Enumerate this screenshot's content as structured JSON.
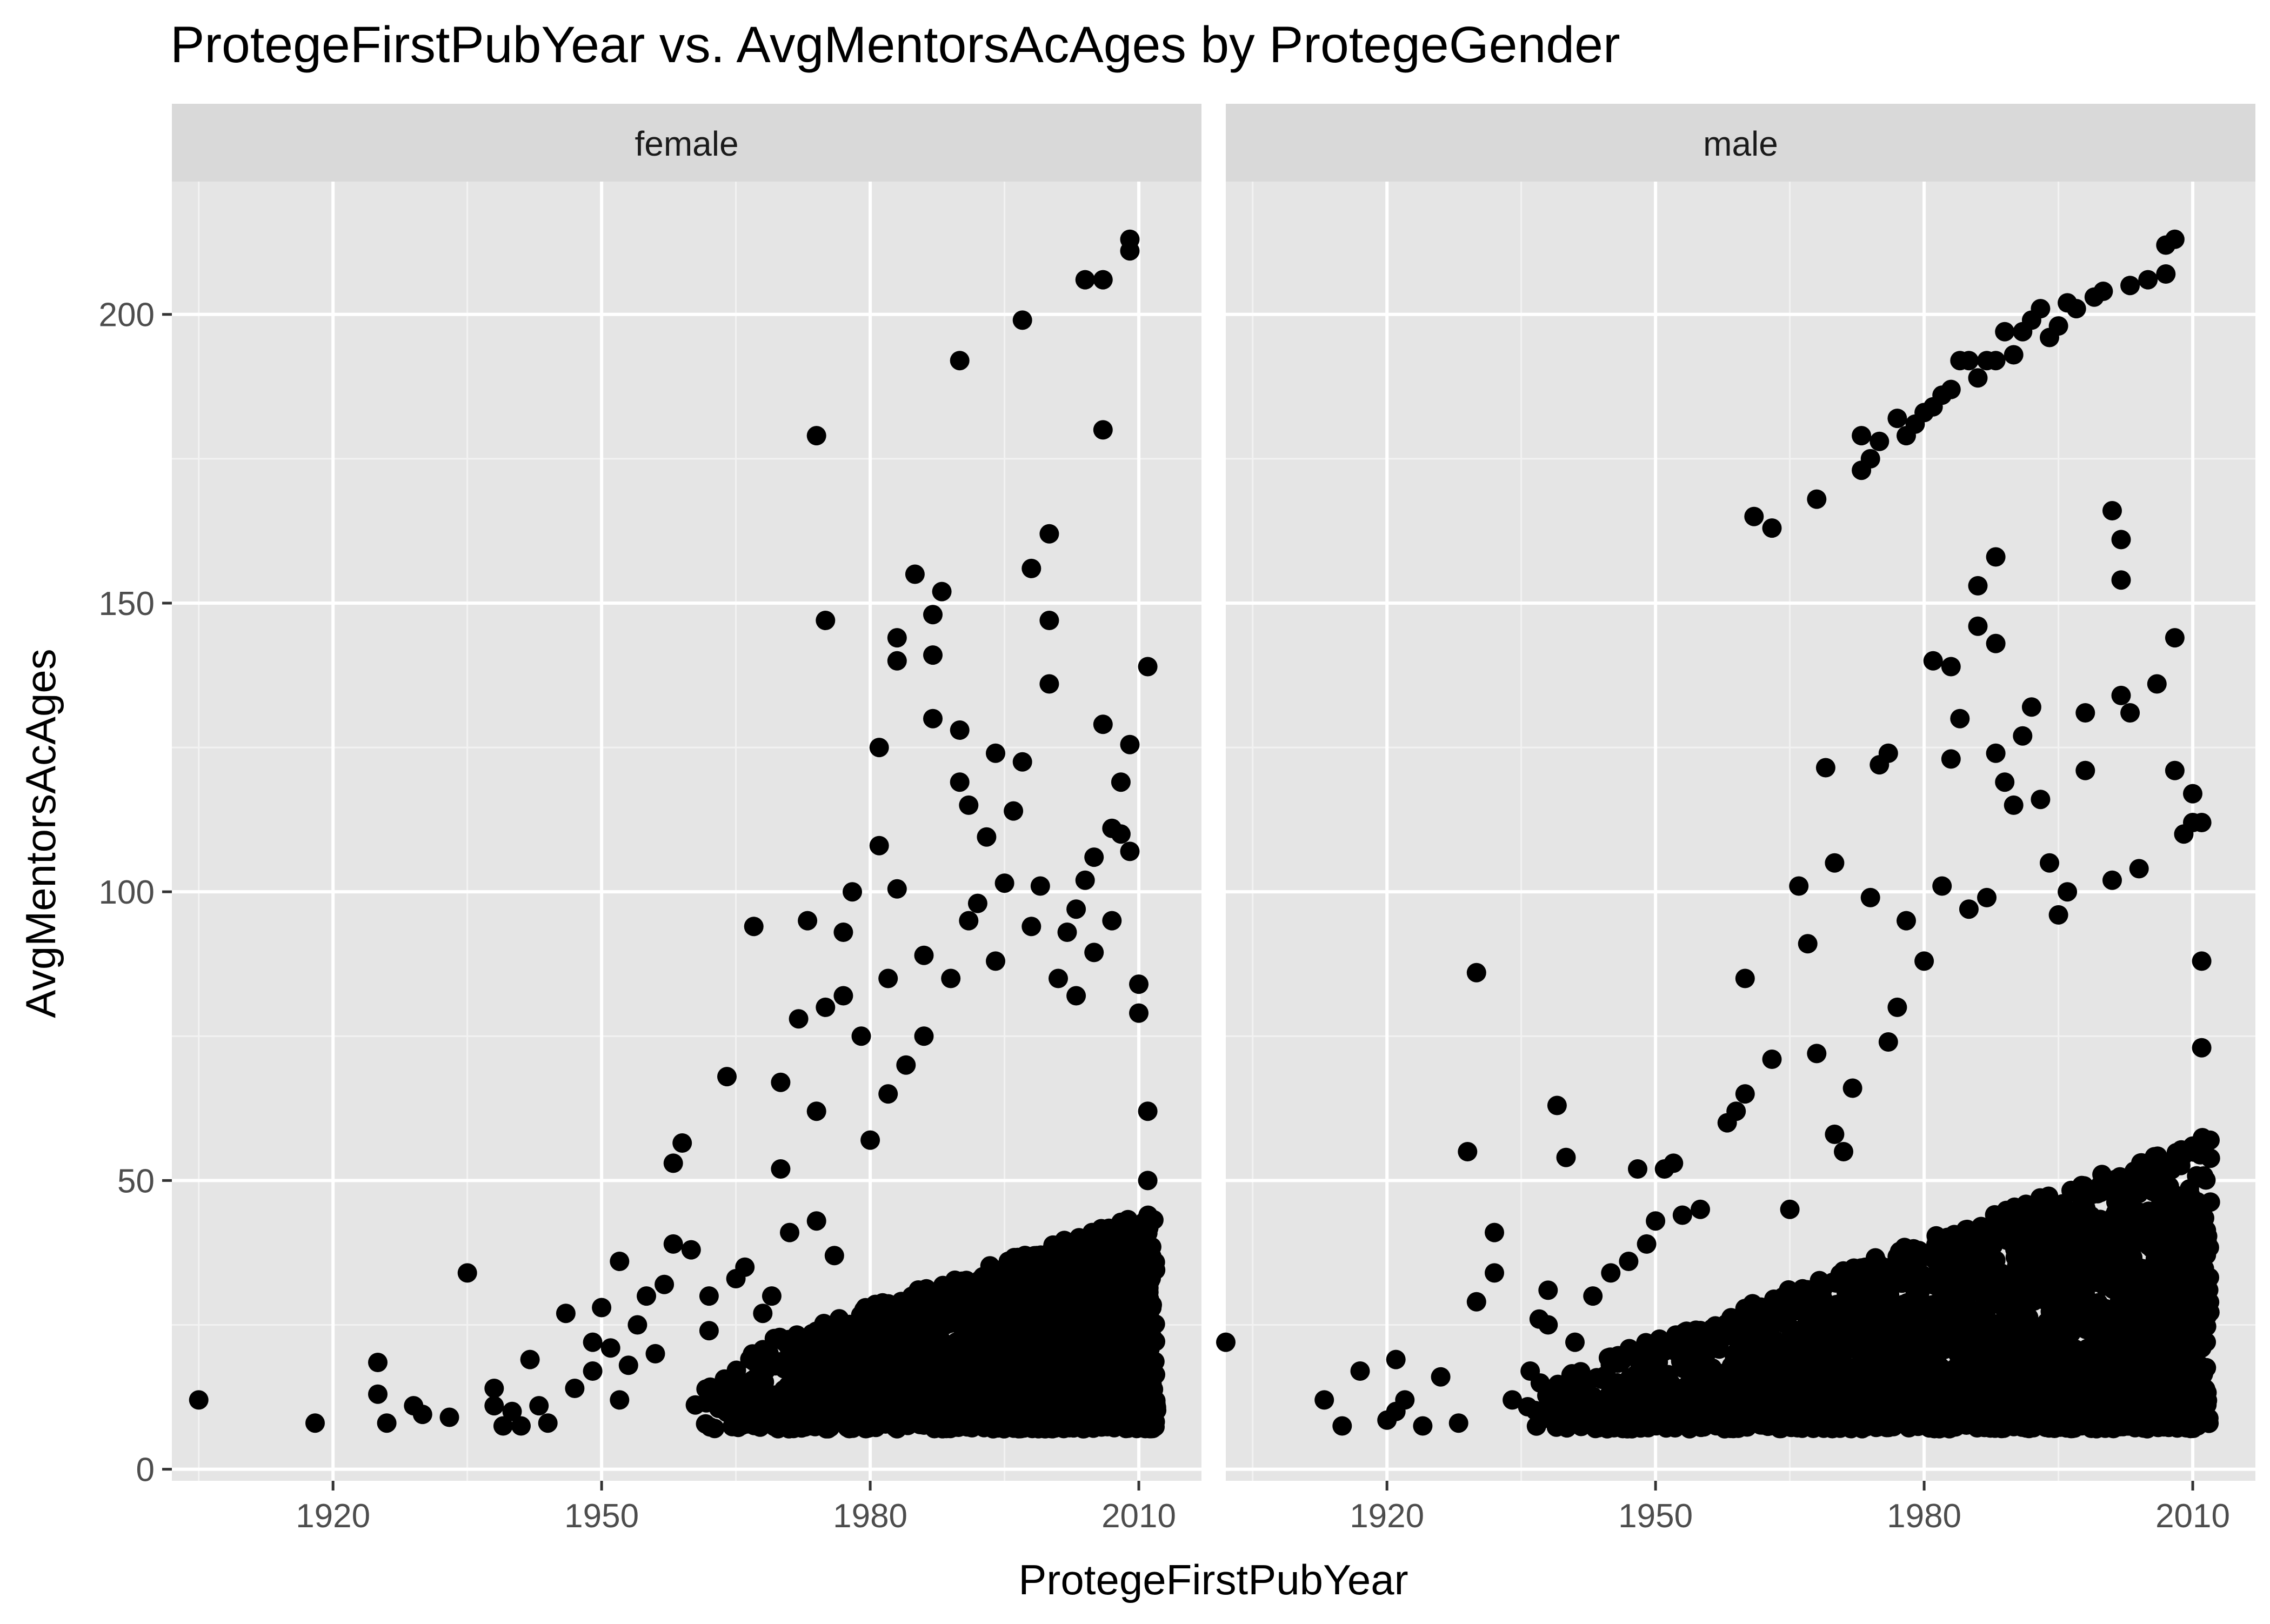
{
  "chart_data": {
    "type": "scatter",
    "title": "ProtegeFirstPubYear vs. AvgMentorsAcAges by ProtegeGender",
    "xlabel": "ProtegeFirstPubYear",
    "ylabel": "AvgMentorsAcAges",
    "xlim": [
      1902,
      2017
    ],
    "ylim": [
      -2,
      223
    ],
    "x_ticks": [
      1920,
      1950,
      1980,
      2010
    ],
    "y_ticks": [
      0,
      50,
      100,
      150,
      200
    ],
    "grid": true,
    "legend": "none",
    "point_color": "#000000",
    "panel_background": "#e5e5e5",
    "strip_background": "#d9d9d9",
    "facets": [
      {
        "label": "female",
        "dense_region": {
          "x_range": [
            1960,
            2012
          ],
          "y_floor": 7,
          "y_ceiling_at_start": 18,
          "y_ceiling_at_end": 45
        },
        "points": [
          [
            1905,
            12
          ],
          [
            1918,
            8
          ],
          [
            1925,
            18.5
          ],
          [
            1925,
            13
          ],
          [
            1926,
            8
          ],
          [
            1929,
            11
          ],
          [
            1930,
            9.5
          ],
          [
            1933,
            9
          ],
          [
            1935,
            34
          ],
          [
            1938,
            14
          ],
          [
            1938,
            11
          ],
          [
            1939,
            7.5
          ],
          [
            1940,
            10
          ],
          [
            1941,
            7.5
          ],
          [
            1942,
            19
          ],
          [
            1943,
            11
          ],
          [
            1944,
            8
          ],
          [
            1946,
            27
          ],
          [
            1947,
            14
          ],
          [
            1949,
            22
          ],
          [
            1949,
            17
          ],
          [
            1950,
            28
          ],
          [
            1951,
            21
          ],
          [
            1952,
            36
          ],
          [
            1952,
            12
          ],
          [
            1954,
            25
          ],
          [
            1955,
            30
          ],
          [
            1957,
            32
          ],
          [
            1958,
            39
          ],
          [
            1958,
            53
          ],
          [
            1959,
            56.5
          ],
          [
            1960,
            38
          ],
          [
            1962,
            30
          ],
          [
            1964,
            68
          ],
          [
            1965,
            33
          ],
          [
            1967,
            94
          ],
          [
            1970,
            52
          ],
          [
            1970,
            67
          ],
          [
            1971,
            41
          ],
          [
            1972,
            78
          ],
          [
            1973,
            95
          ],
          [
            1974,
            43
          ],
          [
            1974,
            62
          ],
          [
            1974,
            179
          ],
          [
            1975,
            147
          ],
          [
            1975,
            80
          ],
          [
            1976,
            37
          ],
          [
            1977,
            82
          ],
          [
            1977,
            93
          ],
          [
            1978,
            100
          ],
          [
            1979,
            75
          ],
          [
            1980,
            57
          ],
          [
            1981,
            108
          ],
          [
            1981,
            125
          ],
          [
            1982,
            85
          ],
          [
            1982,
            65
          ],
          [
            1983,
            140
          ],
          [
            1983,
            144
          ],
          [
            1983,
            100.5
          ],
          [
            1984,
            70
          ],
          [
            1985,
            155
          ],
          [
            1986,
            75
          ],
          [
            1986,
            89
          ],
          [
            1987,
            148
          ],
          [
            1987,
            141
          ],
          [
            1987,
            130
          ],
          [
            1988,
            152
          ],
          [
            1989,
            85
          ],
          [
            1990,
            192
          ],
          [
            1990,
            128
          ],
          [
            1990,
            119
          ],
          [
            1991,
            115
          ],
          [
            1991,
            95
          ],
          [
            1992,
            98
          ],
          [
            1993,
            109.5
          ],
          [
            1994,
            124
          ],
          [
            1994,
            88
          ],
          [
            1995,
            101.5
          ],
          [
            1996,
            114
          ],
          [
            1997,
            199
          ],
          [
            1997,
            122.5
          ],
          [
            1998,
            156
          ],
          [
            1998,
            94
          ],
          [
            1999,
            101
          ],
          [
            2000,
            147
          ],
          [
            2000,
            162
          ],
          [
            2000,
            136
          ],
          [
            2001,
            85
          ],
          [
            2002,
            93
          ],
          [
            2003,
            97
          ],
          [
            2003,
            82
          ],
          [
            2004,
            206
          ],
          [
            2004,
            102
          ],
          [
            2005,
            106
          ],
          [
            2005,
            89.5
          ],
          [
            2006,
            206
          ],
          [
            2006,
            180
          ],
          [
            2006,
            129
          ],
          [
            2007,
            95
          ],
          [
            2007,
            111
          ],
          [
            2008,
            110
          ],
          [
            2008,
            119
          ],
          [
            2009,
            213
          ],
          [
            2009,
            211
          ],
          [
            2009,
            125.5
          ],
          [
            2009,
            107
          ],
          [
            2010,
            84
          ],
          [
            2010,
            79
          ],
          [
            2011,
            139
          ],
          [
            2011,
            50
          ],
          [
            2011,
            62
          ],
          [
            1966,
            35
          ],
          [
            1968,
            27
          ],
          [
            1969,
            30
          ],
          [
            1962,
            24
          ],
          [
            1956,
            20
          ],
          [
            1953,
            18
          ]
        ]
      },
      {
        "label": "male",
        "dense_region": {
          "x_range": [
            1935,
            2012
          ],
          "y_floor": 7,
          "y_ceiling_at_start": 14,
          "y_ceiling_at_end": 58
        },
        "points": [
          [
            1902,
            22
          ],
          [
            1913,
            12
          ],
          [
            1915,
            7.5
          ],
          [
            1917,
            17
          ],
          [
            1920,
            8.5
          ],
          [
            1921,
            19
          ],
          [
            1921,
            10
          ],
          [
            1922,
            12
          ],
          [
            1924,
            7.5
          ],
          [
            1926,
            16
          ],
          [
            1928,
            8
          ],
          [
            1929,
            55
          ],
          [
            1930,
            29
          ],
          [
            1930,
            86
          ],
          [
            1932,
            34
          ],
          [
            1932,
            41
          ],
          [
            1934,
            12
          ],
          [
            1936,
            17
          ],
          [
            1937,
            26
          ],
          [
            1938,
            31
          ],
          [
            1938,
            25
          ],
          [
            1939,
            63
          ],
          [
            1940,
            54
          ],
          [
            1941,
            22
          ],
          [
            1943,
            30
          ],
          [
            1945,
            34
          ],
          [
            1947,
            36
          ],
          [
            1948,
            52
          ],
          [
            1949,
            39
          ],
          [
            1950,
            43
          ],
          [
            1951,
            52
          ],
          [
            1952,
            53
          ],
          [
            1953,
            44
          ],
          [
            1955,
            45
          ],
          [
            1958,
            60
          ],
          [
            1959,
            62
          ],
          [
            1960,
            65
          ],
          [
            1960,
            85
          ],
          [
            1961,
            165
          ],
          [
            1963,
            163
          ],
          [
            1963,
            71
          ],
          [
            1965,
            45
          ],
          [
            1966,
            101
          ],
          [
            1967,
            91
          ],
          [
            1968,
            168
          ],
          [
            1968,
            72
          ],
          [
            1969,
            121.5
          ],
          [
            1970,
            58
          ],
          [
            1970,
            105
          ],
          [
            1971,
            55
          ],
          [
            1972,
            66
          ],
          [
            1973,
            179
          ],
          [
            1973,
            173
          ],
          [
            1974,
            175
          ],
          [
            1974,
            99
          ],
          [
            1975,
            178
          ],
          [
            1975,
            122
          ],
          [
            1976,
            124
          ],
          [
            1976,
            74
          ],
          [
            1977,
            182
          ],
          [
            1977,
            80
          ],
          [
            1978,
            179
          ],
          [
            1978,
            95
          ],
          [
            1979,
            181
          ],
          [
            1980,
            183
          ],
          [
            1980,
            88
          ],
          [
            1981,
            184
          ],
          [
            1981,
            140
          ],
          [
            1982,
            186
          ],
          [
            1982,
            101
          ],
          [
            1983,
            187
          ],
          [
            1983,
            123
          ],
          [
            1983,
            139
          ],
          [
            1984,
            192
          ],
          [
            1984,
            130
          ],
          [
            1985,
            192
          ],
          [
            1985,
            97
          ],
          [
            1986,
            189
          ],
          [
            1986,
            146
          ],
          [
            1986,
            153
          ],
          [
            1987,
            192
          ],
          [
            1987,
            99
          ],
          [
            1988,
            192
          ],
          [
            1988,
            158
          ],
          [
            1988,
            143
          ],
          [
            1988,
            124
          ],
          [
            1989,
            197
          ],
          [
            1989,
            119
          ],
          [
            1990,
            193
          ],
          [
            1990,
            115
          ],
          [
            1991,
            197
          ],
          [
            1991,
            127
          ],
          [
            1992,
            199
          ],
          [
            1992,
            132
          ],
          [
            1993,
            201
          ],
          [
            1993,
            116
          ],
          [
            1994,
            196
          ],
          [
            1994,
            105
          ],
          [
            1995,
            198
          ],
          [
            1995,
            96
          ],
          [
            1996,
            202
          ],
          [
            1996,
            100
          ],
          [
            1997,
            201
          ],
          [
            1998,
            131
          ],
          [
            1998,
            121
          ],
          [
            1999,
            203
          ],
          [
            2000,
            204
          ],
          [
            2001,
            166
          ],
          [
            2001,
            102
          ],
          [
            2002,
            161
          ],
          [
            2002,
            154
          ],
          [
            2002,
            134
          ],
          [
            2003,
            205
          ],
          [
            2003,
            131
          ],
          [
            2004,
            104
          ],
          [
            2005,
            206
          ],
          [
            2006,
            136
          ],
          [
            2007,
            207
          ],
          [
            2007,
            212
          ],
          [
            2008,
            213
          ],
          [
            2008,
            144
          ],
          [
            2008,
            121
          ],
          [
            2009,
            110
          ],
          [
            2010,
            117
          ],
          [
            2010,
            112
          ],
          [
            2011,
            112
          ],
          [
            2011,
            88
          ],
          [
            2011,
            73
          ]
        ]
      }
    ]
  }
}
